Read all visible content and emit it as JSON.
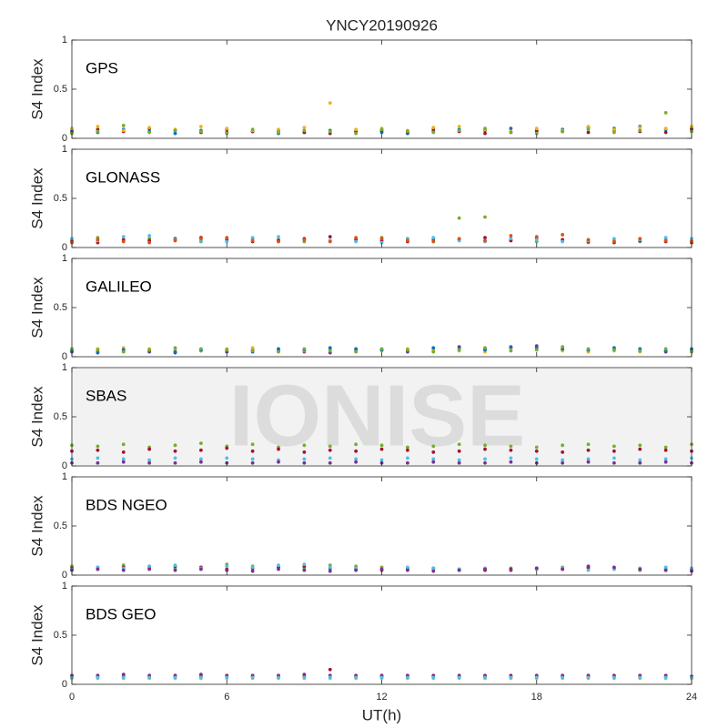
{
  "watermark": "IONISE",
  "chart_data": [
    {
      "type": "scatter",
      "title": "YNCY20190926",
      "label": "GPS",
      "ylabel": "S4 Index",
      "xlim": [
        0,
        24
      ],
      "xticks": [
        0,
        6,
        12,
        18,
        24
      ],
      "ylim": [
        0,
        1
      ],
      "yticks": [
        0,
        0.5,
        1
      ],
      "x": [
        0,
        1,
        2,
        3,
        4,
        5,
        6,
        7,
        8,
        9,
        10,
        11,
        12,
        13,
        14,
        15,
        16,
        17,
        18,
        19,
        20,
        21,
        22,
        23,
        24
      ],
      "series": [
        {
          "color": "#0072BD",
          "values": [
            0.08,
            0.06,
            0.09,
            0.07,
            0.05,
            0.08,
            0.06,
            0.07,
            0.05,
            0.06,
            0.08,
            0.07,
            0.06,
            0.05,
            0.07,
            0.09,
            0.08,
            0.1,
            0.07,
            0.09,
            0.11,
            0.1,
            0.12,
            0.09,
            0.1
          ]
        },
        {
          "color": "#A2142F",
          "values": [
            0.06,
            0.09,
            0.07,
            0.1,
            0.08,
            0.06,
            0.09,
            0.07,
            0.08,
            0.06,
            0.05,
            0.07,
            0.08,
            0.06,
            0.09,
            0.07,
            0.05,
            0.06,
            0.08,
            0.07,
            0.06,
            0.08,
            0.07,
            0.06,
            0.09
          ]
        },
        {
          "color": "#EDB120",
          "values": [
            0.1,
            0.12,
            0.08,
            0.11,
            0.09,
            0.12,
            0.1,
            0.08,
            0.09,
            0.11,
            0.36,
            0.09,
            0.1,
            0.08,
            0.11,
            0.12,
            0.09,
            0.07,
            0.1,
            0.08,
            0.12,
            0.09,
            0.11,
            0.1,
            0.12
          ]
        },
        {
          "color": "#77AC30",
          "values": [
            0.05,
            0.07,
            0.13,
            0.06,
            0.08,
            0.07,
            0.05,
            0.09,
            0.06,
            0.08,
            0.07,
            0.05,
            0.09,
            0.07,
            0.06,
            0.08,
            0.1,
            0.06,
            0.05,
            0.07,
            0.09,
            0.06,
            0.08,
            0.26,
            0.07
          ]
        }
      ]
    },
    {
      "type": "scatter",
      "label": "GLONASS",
      "ylabel": "S4 Index",
      "xlim": [
        0,
        24
      ],
      "xticks": [
        0,
        6,
        12,
        18,
        24
      ],
      "ylim": [
        0,
        1
      ],
      "yticks": [
        0,
        0.5,
        1
      ],
      "x": [
        0,
        1,
        2,
        3,
        4,
        5,
        6,
        7,
        8,
        9,
        10,
        11,
        12,
        13,
        14,
        15,
        16,
        17,
        18,
        19,
        20,
        21,
        22,
        23,
        24
      ],
      "series": [
        {
          "color": "#77AC30",
          "values": [
            0.08,
            0.1,
            0.07,
            0.09,
            0.08,
            0.06,
            0.07,
            0.09,
            0.08,
            0.06,
            0.07,
            0.08,
            0.1,
            0.09,
            0.07,
            0.3,
            0.31,
            0.08,
            0.06,
            0.07,
            0.05,
            0.07,
            0.06,
            0.08,
            0.07
          ]
        },
        {
          "color": "#A2142F",
          "values": [
            0.06,
            0.05,
            0.08,
            0.07,
            0.09,
            0.1,
            0.08,
            0.06,
            0.07,
            0.09,
            0.11,
            0.08,
            0.07,
            0.06,
            0.09,
            0.08,
            0.1,
            0.07,
            0.09,
            0.08,
            0.06,
            0.05,
            0.07,
            0.06,
            0.05
          ]
        },
        {
          "color": "#4DBEEE",
          "values": [
            0.09,
            0.07,
            0.11,
            0.12,
            0.08,
            0.07,
            0.06,
            0.1,
            0.11,
            0.08,
            0.07,
            0.06,
            0.05,
            0.08,
            0.1,
            0.07,
            0.06,
            0.09,
            0.08,
            0.06,
            0.07,
            0.09,
            0.08,
            0.1,
            0.09
          ]
        },
        {
          "color": "#D95319",
          "values": [
            0.05,
            0.08,
            0.06,
            0.05,
            0.07,
            0.09,
            0.1,
            0.07,
            0.06,
            0.08,
            0.06,
            0.1,
            0.09,
            0.07,
            0.06,
            0.09,
            0.07,
            0.12,
            0.11,
            0.13,
            0.08,
            0.06,
            0.09,
            0.07,
            0.06
          ]
        }
      ]
    },
    {
      "type": "scatter",
      "label": "GALILEO",
      "ylabel": "S4 Index",
      "xlim": [
        0,
        24
      ],
      "xticks": [
        0,
        6,
        12,
        18,
        24
      ],
      "ylim": [
        0,
        1
      ],
      "yticks": [
        0,
        0.5,
        1
      ],
      "x": [
        0,
        1,
        2,
        3,
        4,
        5,
        6,
        7,
        8,
        9,
        10,
        11,
        12,
        13,
        14,
        15,
        16,
        17,
        18,
        19,
        20,
        21,
        22,
        23,
        24
      ],
      "series": [
        {
          "color": "#7E2F8E",
          "values": [
            0.05,
            0.04,
            0.06,
            0.05,
            0.04,
            0.06,
            0.05,
            0.07,
            0.06,
            0.05,
            0.04,
            0.06,
            0.07,
            0.05,
            0.06,
            0.1,
            0.08,
            0.09,
            0.11,
            0.07,
            0.06,
            0.08,
            0.07,
            0.05,
            0.06
          ]
        },
        {
          "color": "#EDB120",
          "values": [
            0.07,
            0.08,
            0.09,
            0.08,
            0.07,
            0.06,
            0.08,
            0.09,
            0.07,
            0.06,
            0.08,
            0.07,
            0.06,
            0.08,
            0.07,
            0.06,
            0.05,
            0.07,
            0.08,
            0.06,
            0.05,
            0.06,
            0.05,
            0.07,
            0.06
          ]
        },
        {
          "color": "#0072BD",
          "values": [
            0.06,
            0.05,
            0.07,
            0.06,
            0.05,
            0.07,
            0.06,
            0.05,
            0.08,
            0.07,
            0.09,
            0.08,
            0.07,
            0.06,
            0.09,
            0.08,
            0.07,
            0.1,
            0.09,
            0.08,
            0.07,
            0.09,
            0.08,
            0.06,
            0.08
          ]
        },
        {
          "color": "#77AC30",
          "values": [
            0.08,
            0.07,
            0.05,
            0.07,
            0.09,
            0.08,
            0.07,
            0.06,
            0.05,
            0.08,
            0.06,
            0.05,
            0.08,
            0.07,
            0.05,
            0.07,
            0.09,
            0.06,
            0.07,
            0.1,
            0.08,
            0.07,
            0.06,
            0.08,
            0.05
          ]
        }
      ]
    },
    {
      "type": "scatter",
      "label": "SBAS",
      "ylabel": "S4 Index",
      "xlim": [
        0,
        24
      ],
      "xticks": [
        0,
        6,
        12,
        18,
        24
      ],
      "ylim": [
        0,
        1
      ],
      "yticks": [
        0,
        0.5,
        1
      ],
      "x": [
        0,
        1,
        2,
        3,
        4,
        5,
        6,
        7,
        8,
        9,
        10,
        11,
        12,
        13,
        14,
        15,
        16,
        17,
        18,
        19,
        20,
        21,
        22,
        23,
        24
      ],
      "series": [
        {
          "color": "#77AC30",
          "values": [
            0.21,
            0.2,
            0.22,
            0.19,
            0.21,
            0.23,
            0.2,
            0.22,
            0.19,
            0.21,
            0.2,
            0.22,
            0.21,
            0.19,
            0.2,
            0.22,
            0.21,
            0.2,
            0.19,
            0.21,
            0.22,
            0.2,
            0.21,
            0.19,
            0.22
          ]
        },
        {
          "color": "#A2142F",
          "values": [
            0.15,
            0.16,
            0.14,
            0.17,
            0.15,
            0.16,
            0.18,
            0.15,
            0.17,
            0.14,
            0.16,
            0.15,
            0.17,
            0.16,
            0.14,
            0.15,
            0.17,
            0.16,
            0.15,
            0.14,
            0.16,
            0.15,
            0.17,
            0.16,
            0.15
          ]
        },
        {
          "color": "#4DBEEE",
          "values": [
            0.07,
            0.08,
            0.07,
            0.06,
            0.08,
            0.07,
            0.08,
            0.07,
            0.06,
            0.07,
            0.08,
            0.07,
            0.06,
            0.08,
            0.07,
            0.06,
            0.07,
            0.08,
            0.07,
            0.06,
            0.07,
            0.08,
            0.06,
            0.07,
            0.08
          ]
        },
        {
          "color": "#7E2F8E",
          "values": [
            0.03,
            0.03,
            0.04,
            0.03,
            0.03,
            0.04,
            0.03,
            0.03,
            0.04,
            0.03,
            0.03,
            0.04,
            0.03,
            0.03,
            0.04,
            0.03,
            0.03,
            0.04,
            0.03,
            0.03,
            0.04,
            0.03,
            0.03,
            0.04,
            0.03
          ]
        }
      ]
    },
    {
      "type": "scatter",
      "label": "BDS NGEO",
      "ylabel": "S4 Index",
      "xlim": [
        0,
        24
      ],
      "xticks": [
        0,
        6,
        12,
        18,
        24
      ],
      "ylim": [
        0,
        1
      ],
      "yticks": [
        0,
        0.5,
        1
      ],
      "x": [
        0,
        1,
        2,
        3,
        4,
        5,
        6,
        7,
        8,
        9,
        10,
        11,
        12,
        13,
        14,
        15,
        16,
        17,
        18,
        19,
        20,
        21,
        22,
        23,
        24
      ],
      "series": [
        {
          "color": "#77AC30",
          "values": [
            0.09,
            0.08,
            0.1,
            0.09,
            0.07,
            0.08,
            0.11,
            0.09,
            0.08,
            0.07,
            0.1,
            0.09,
            0.08,
            0.07,
            0.06,
            0.05,
            0.06,
            0.07,
            0.06,
            0.08,
            0.07,
            0.06,
            0.05,
            0.07,
            0.06
          ]
        },
        {
          "color": "#A2142F",
          "values": [
            0.07,
            0.06,
            0.08,
            0.07,
            0.09,
            0.08,
            0.06,
            0.07,
            0.08,
            0.09,
            0.07,
            0.06,
            0.05,
            0.06,
            0.07,
            0.06,
            0.05,
            0.06,
            0.07,
            0.06,
            0.08,
            0.07,
            0.06,
            0.05,
            0.06
          ]
        },
        {
          "color": "#4DBEEE",
          "values": [
            0.06,
            0.08,
            0.07,
            0.09,
            0.1,
            0.07,
            0.09,
            0.08,
            0.1,
            0.11,
            0.08,
            0.07,
            0.06,
            0.08,
            0.07,
            0.06,
            0.07,
            0.05,
            0.06,
            0.07,
            0.05,
            0.06,
            0.07,
            0.08,
            0.07
          ]
        },
        {
          "color": "#7E2F8E",
          "values": [
            0.05,
            0.06,
            0.05,
            0.06,
            0.05,
            0.06,
            0.05,
            0.04,
            0.06,
            0.05,
            0.04,
            0.05,
            0.06,
            0.05,
            0.04,
            0.05,
            0.06,
            0.05,
            0.07,
            0.06,
            0.09,
            0.08,
            0.06,
            0.05,
            0.04
          ]
        }
      ]
    },
    {
      "type": "scatter",
      "label": "BDS GEO",
      "ylabel": "S4 Index",
      "xlabel": "UT(h)",
      "xlim": [
        0,
        24
      ],
      "xticks": [
        0,
        6,
        12,
        18,
        24
      ],
      "ylim": [
        0,
        1
      ],
      "yticks": [
        0,
        0.5,
        1
      ],
      "x": [
        0,
        1,
        2,
        3,
        4,
        5,
        6,
        7,
        8,
        9,
        10,
        11,
        12,
        13,
        14,
        15,
        16,
        17,
        18,
        19,
        20,
        21,
        22,
        23,
        24
      ],
      "series": [
        {
          "color": "#7E2F8E",
          "values": [
            0.09,
            0.09,
            0.1,
            0.09,
            0.09,
            0.1,
            0.09,
            0.09,
            0.09,
            0.1,
            0.09,
            0.09,
            0.09,
            0.09,
            0.09,
            0.09,
            0.09,
            0.09,
            0.09,
            0.09,
            0.09,
            0.09,
            0.09,
            0.09,
            0.08
          ]
        },
        {
          "color": "#A2142F",
          "values": [
            0.08,
            0.08,
            0.08,
            0.08,
            0.08,
            0.08,
            0.08,
            0.08,
            0.08,
            0.08,
            0.15,
            0.08,
            0.08,
            0.08,
            0.08,
            0.08,
            0.08,
            0.08,
            0.08,
            0.08,
            0.08,
            0.08,
            0.08,
            0.08,
            0.08
          ]
        },
        {
          "color": "#EDB120",
          "values": [
            0.06,
            0.06,
            0.06,
            0.06,
            0.06,
            0.06,
            0.06,
            0.06,
            0.06,
            0.06,
            0.06,
            0.06,
            0.06,
            0.06,
            0.06,
            0.06,
            0.06,
            0.06,
            0.06,
            0.06,
            0.06,
            0.06,
            0.06,
            0.06,
            0.06
          ]
        },
        {
          "color": "#4DBEEE",
          "values": [
            0.07,
            0.07,
            0.07,
            0.07,
            0.07,
            0.07,
            0.07,
            0.07,
            0.07,
            0.07,
            0.07,
            0.07,
            0.07,
            0.07,
            0.07,
            0.07,
            0.07,
            0.07,
            0.07,
            0.07,
            0.07,
            0.07,
            0.07,
            0.07,
            0.07
          ]
        }
      ]
    }
  ]
}
